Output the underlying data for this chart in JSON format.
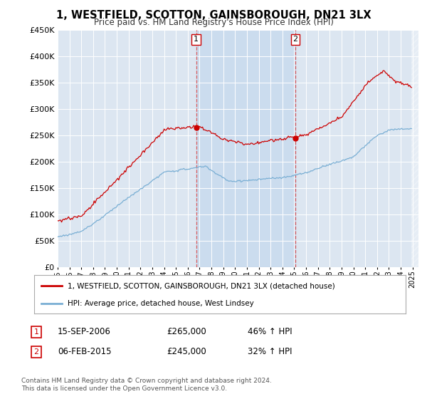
{
  "title": "1, WESTFIELD, SCOTTON, GAINSBOROUGH, DN21 3LX",
  "subtitle": "Price paid vs. HM Land Registry's House Price Index (HPI)",
  "background_color": "#ffffff",
  "plot_bg_color": "#dce6f1",
  "grid_color": "#ffffff",
  "red_line_color": "#cc0000",
  "blue_line_color": "#7aafd4",
  "shade_color": "#c5d8ed",
  "sale1_date_label": "15-SEP-2006",
  "sale1_year": 2006.71,
  "sale1_price": 265000,
  "sale1_pct": "46%",
  "sale2_date_label": "06-FEB-2015",
  "sale2_year": 2015.1,
  "sale2_price": 245000,
  "sale2_pct": "32%",
  "legend_label1": "1, WESTFIELD, SCOTTON, GAINSBOROUGH, DN21 3LX (detached house)",
  "legend_label2": "HPI: Average price, detached house, West Lindsey",
  "footer1": "Contains HM Land Registry data © Crown copyright and database right 2024.",
  "footer2": "This data is licensed under the Open Government Licence v3.0.",
  "ylim_top": 450000,
  "ylim_bottom": 0,
  "xlim_left": 1995,
  "xlim_right": 2025.5
}
